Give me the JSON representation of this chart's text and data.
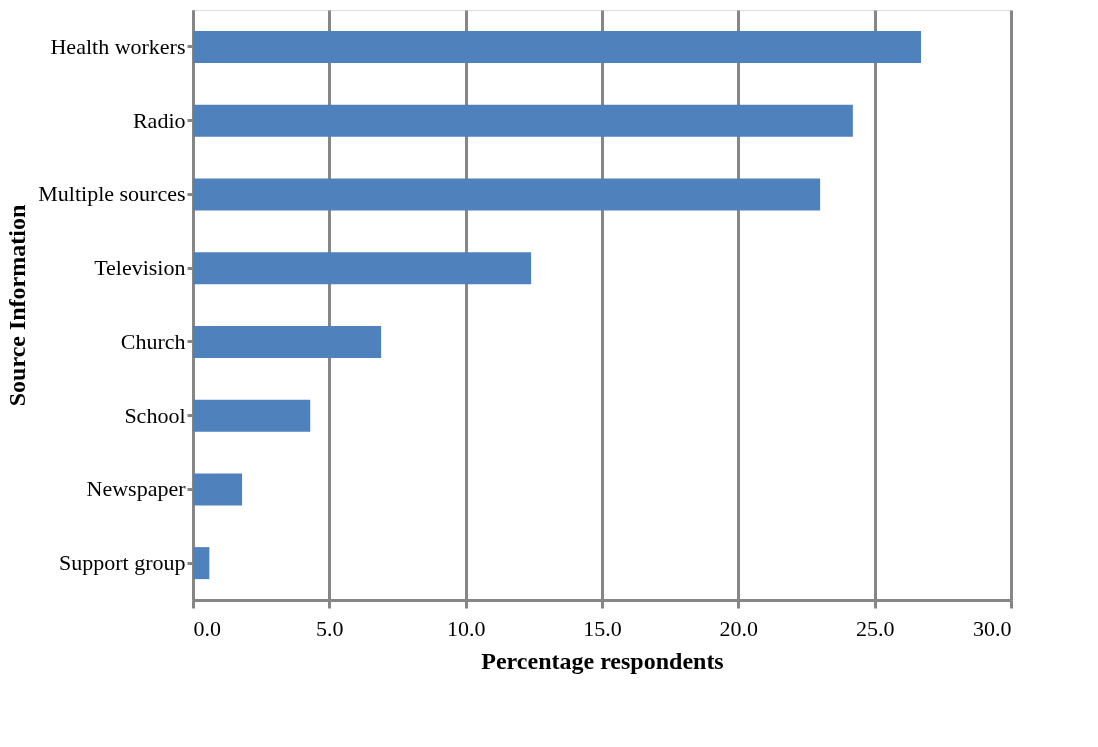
{
  "chart_data": {
    "type": "bar",
    "orientation": "horizontal",
    "xlabel": "Percentage respondents",
    "ylabel": "Source Information",
    "categories": [
      "Health workers",
      "Radio",
      "Multiple sources",
      "Television",
      "Church",
      "School",
      "Newspaper",
      "Support group"
    ],
    "values": [
      26.7,
      24.2,
      23.0,
      12.4,
      6.9,
      4.3,
      1.8,
      0.6
    ],
    "color": "#4f81bd",
    "xlim": [
      0,
      30
    ],
    "xticks": [
      {
        "value": 0,
        "label": "0.0"
      },
      {
        "value": 5,
        "label": "5.0"
      },
      {
        "value": 10,
        "label": "10.0"
      },
      {
        "value": 15,
        "label": "15.0"
      },
      {
        "value": 20,
        "label": "20.0"
      },
      {
        "value": 25,
        "label": "25.0"
      },
      {
        "value": 30,
        "label": "30.0"
      }
    ],
    "grid": "x"
  }
}
